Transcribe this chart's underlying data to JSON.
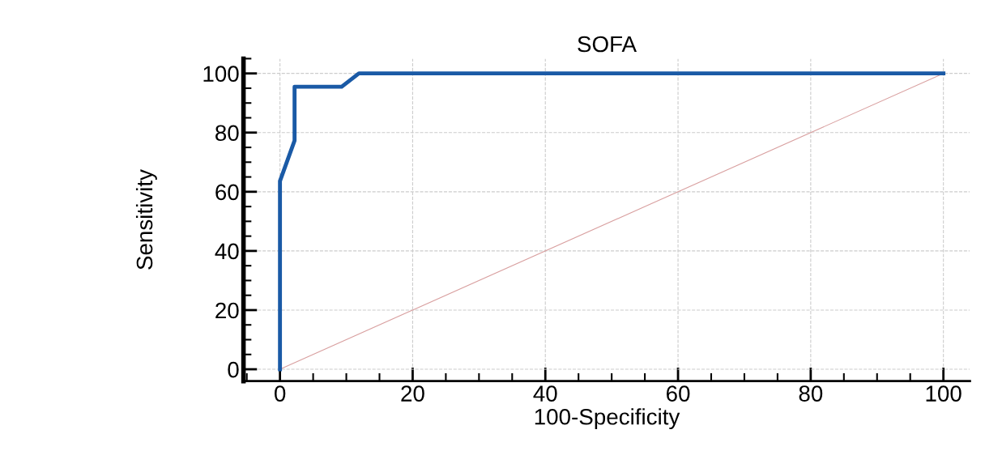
{
  "chart_data": {
    "type": "line",
    "title": "SOFA",
    "xlabel": "100-Specificity",
    "ylabel": "Sensitivity",
    "series": [
      {
        "color": "#1a5aa6",
        "x": [
          0,
          0,
          2.2,
          2.2,
          9.3,
          11.9,
          100
        ],
        "values": [
          0,
          63.6,
          77.3,
          95.5,
          95.5,
          100,
          100
        ]
      },
      {
        "color": "#d9a0a0",
        "x": [
          0,
          100
        ],
        "values": [
          0,
          100
        ]
      }
    ],
    "xlim": [
      -5.5,
      104
    ],
    "ylim": [
      -4,
      105
    ],
    "xticks": [
      0,
      20,
      40,
      60,
      80,
      100
    ],
    "yticks": [
      0,
      20,
      40,
      60,
      80,
      100
    ],
    "grid": true,
    "marker": "none",
    "line_style": "solid"
  }
}
